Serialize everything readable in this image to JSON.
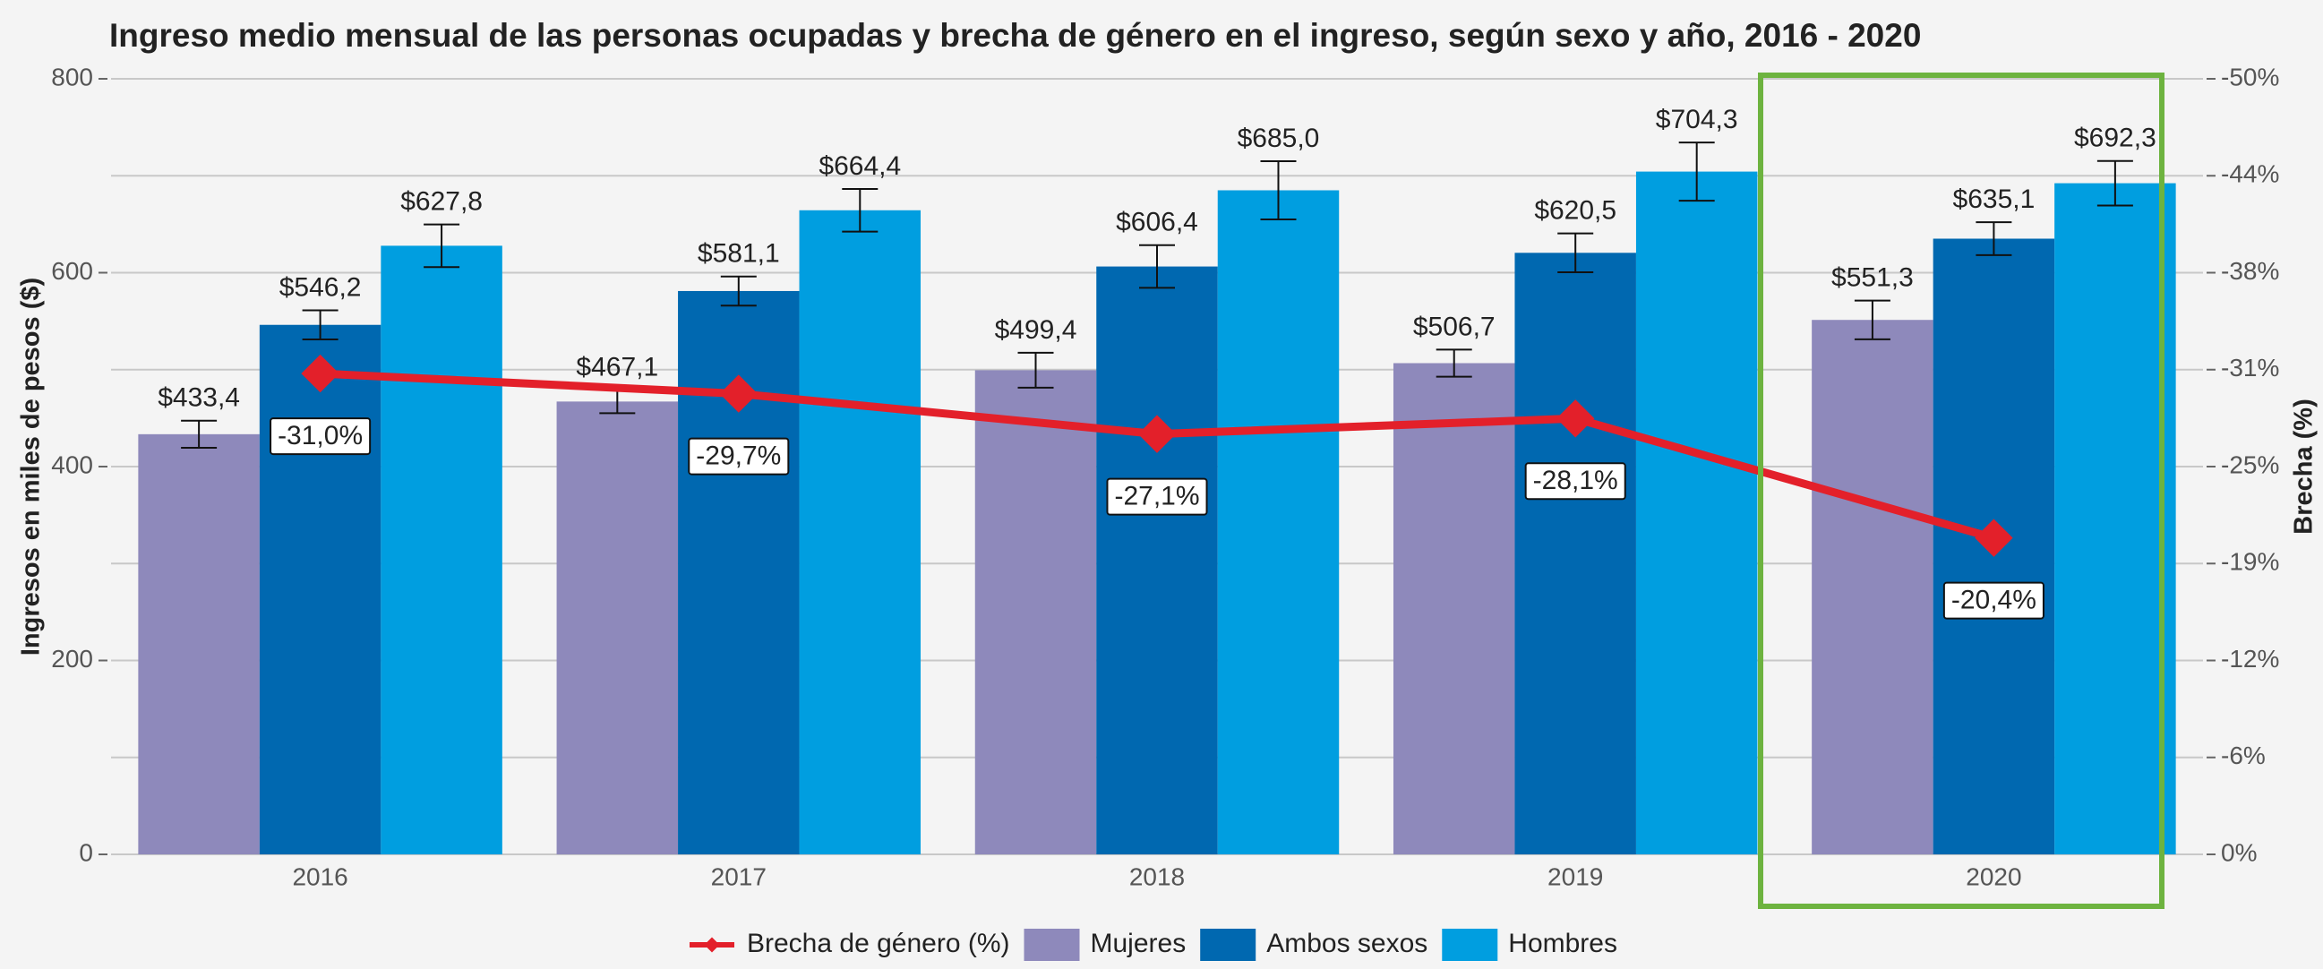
{
  "chart_data": {
    "type": "bar",
    "title": "Ingreso medio mensual de las personas ocupadas y brecha de género en el ingreso, según sexo y año, 2016 - 2020",
    "ylabel": "Ingresos en miles de pesos ($)",
    "y2label": "Brecha (%)",
    "categories": [
      "2016",
      "2017",
      "2018",
      "2019",
      "2020"
    ],
    "ylim": [
      0,
      800
    ],
    "yticks": [
      0,
      200,
      400,
      600,
      800
    ],
    "y2lim": [
      0,
      -50
    ],
    "y2ticks": [
      {
        "value": 0,
        "label": "0%"
      },
      {
        "value": -6.25,
        "label": "-6%"
      },
      {
        "value": -12.5,
        "label": "-12%"
      },
      {
        "value": -18.75,
        "label": "-19%"
      },
      {
        "value": -25,
        "label": "-25%"
      },
      {
        "value": -31.25,
        "label": "-31%"
      },
      {
        "value": -37.5,
        "label": "-38%"
      },
      {
        "value": -43.75,
        "label": "-44%"
      },
      {
        "value": -50,
        "label": "-50%"
      }
    ],
    "grid": true,
    "legend": "bottom",
    "series": [
      {
        "name": "Brecha de género (%)",
        "type": "line",
        "axis": "y2",
        "color": "#e3202a",
        "values": [
          -31.0,
          -29.7,
          -27.1,
          -28.1,
          -20.4
        ],
        "value_labels": [
          "-31,0%",
          "-29,7%",
          "-27,1%",
          "-28,1%",
          "-20,4%"
        ]
      },
      {
        "name": "Mujeres",
        "type": "bar",
        "color": "#8e89bb",
        "values": [
          433.4,
          467.1,
          499.4,
          506.7,
          551.3
        ],
        "value_labels": [
          "$433,4",
          "$467,1",
          "$499,4",
          "$506,7",
          "$551,3"
        ],
        "errors": [
          14,
          12,
          18,
          14,
          20
        ]
      },
      {
        "name": "Ambos sexos",
        "type": "bar",
        "color": "#0068b0",
        "values": [
          546.2,
          581.1,
          606.4,
          620.5,
          635.1
        ],
        "value_labels": [
          "$546,2",
          "$581,1",
          "$606,4",
          "$620,5",
          "$635,1"
        ],
        "errors": [
          15,
          15,
          22,
          20,
          17
        ]
      },
      {
        "name": "Hombres",
        "type": "bar",
        "color": "#009ee0",
        "values": [
          627.8,
          664.4,
          685.0,
          704.3,
          692.3
        ],
        "value_labels": [
          "$627,8",
          "$664,4",
          "$685,0",
          "$704,3",
          "$692,3"
        ],
        "errors": [
          22,
          22,
          30,
          30,
          23
        ]
      }
    ]
  }
}
